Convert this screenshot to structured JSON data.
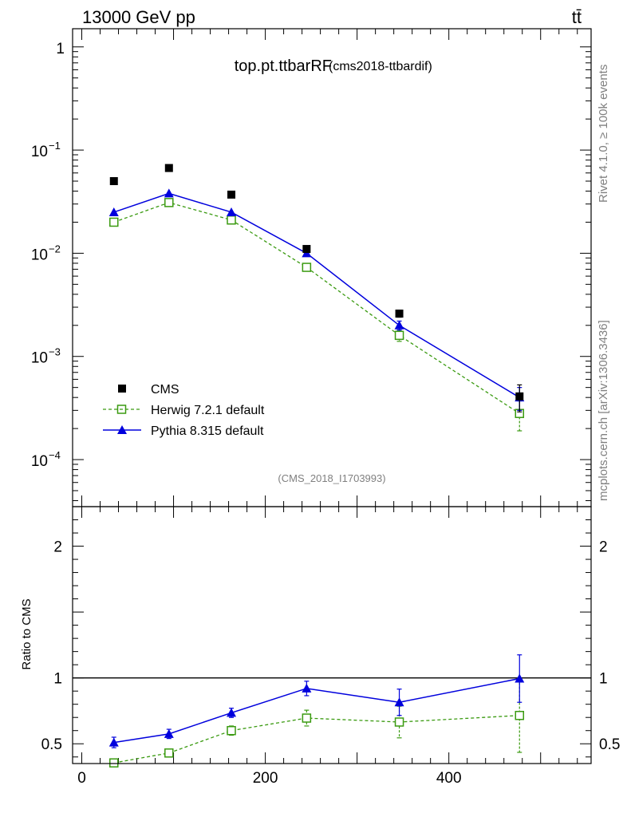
{
  "header": {
    "energy": "13000 GeV pp",
    "process": "tt̄"
  },
  "title": {
    "main": "top.pt.ttbarRF",
    "sub": "(cms2018-ttbardif)"
  },
  "side_labels": {
    "rivet": "Rivet 4.1.0, ≥ 100k events",
    "mcplots": "mcplots.cern.ch [arXiv:1306.3436]"
  },
  "analysis_id": "(CMS_2018_I1703993)",
  "legend": [
    "CMS",
    "Herwig 7.2.1 default",
    "Pythia 8.315 default"
  ],
  "colors": {
    "data": "#000000",
    "herwig": "#3a9a10",
    "pythia": "#0000dd"
  },
  "chart_data": [
    {
      "type": "scatter",
      "panel": "main",
      "yscale": "log",
      "xlim": [
        -10,
        555
      ],
      "ylim": [
        3.5e-05,
        1.5
      ],
      "y_ticks": [
        {
          "v": 1,
          "label": "1"
        },
        {
          "v": 0.1,
          "label": "10",
          "exp": "−1"
        },
        {
          "v": 0.01,
          "label": "10",
          "exp": "−2"
        },
        {
          "v": 0.001,
          "label": "10",
          "exp": "−3"
        },
        {
          "v": 0.0001,
          "label": "10",
          "exp": "−4"
        }
      ],
      "x": [
        35,
        95,
        163,
        245,
        346,
        477
      ],
      "series": [
        {
          "name": "CMS",
          "values": [
            0.05,
            0.067,
            0.037,
            0.011,
            0.0026,
            0.00041
          ],
          "err": [
            0,
            0,
            0,
            0,
            0.0002,
            0.00012
          ]
        },
        {
          "name": "Herwig 7.2.1 default",
          "values": [
            0.02,
            0.031,
            0.021,
            0.0073,
            0.0016,
            0.00028
          ],
          "err": [
            0,
            0,
            0,
            0,
            0.0002,
            9e-05
          ]
        },
        {
          "name": "Pythia 8.315 default",
          "values": [
            0.025,
            0.038,
            0.025,
            0.01,
            0.002,
            0.0004
          ],
          "err": [
            0,
            0,
            0,
            0,
            0.0002,
            0.0001
          ]
        }
      ]
    },
    {
      "type": "line",
      "panel": "ratio",
      "ylabel": "Ratio to CMS",
      "xlim": [
        -10,
        555
      ],
      "ylim": [
        0.35,
        2.3
      ],
      "y_ticks": [
        {
          "v": 2,
          "label": "2"
        },
        {
          "v": 1,
          "label": "1"
        },
        {
          "v": 0.5,
          "label": "0.5"
        }
      ],
      "x_ticks": [
        {
          "v": 0,
          "label": "0"
        },
        {
          "v": 200,
          "label": "200"
        },
        {
          "v": 400,
          "label": "400"
        }
      ],
      "reference": 1,
      "x": [
        35,
        95,
        163,
        245,
        346,
        477
      ],
      "series": [
        {
          "name": "Pythia 8.315 default",
          "values": [
            0.51,
            0.575,
            0.735,
            0.92,
            0.815,
            0.995
          ],
          "err": [
            0.04,
            0.035,
            0.035,
            0.055,
            0.1,
            0.18
          ]
        },
        {
          "name": "Herwig 7.2.1 default",
          "values": [
            0.355,
            0.43,
            0.6,
            0.695,
            0.665,
            0.715
          ],
          "err": [
            0.02,
            0.025,
            0.035,
            0.06,
            0.12,
            0.28
          ]
        }
      ]
    }
  ]
}
